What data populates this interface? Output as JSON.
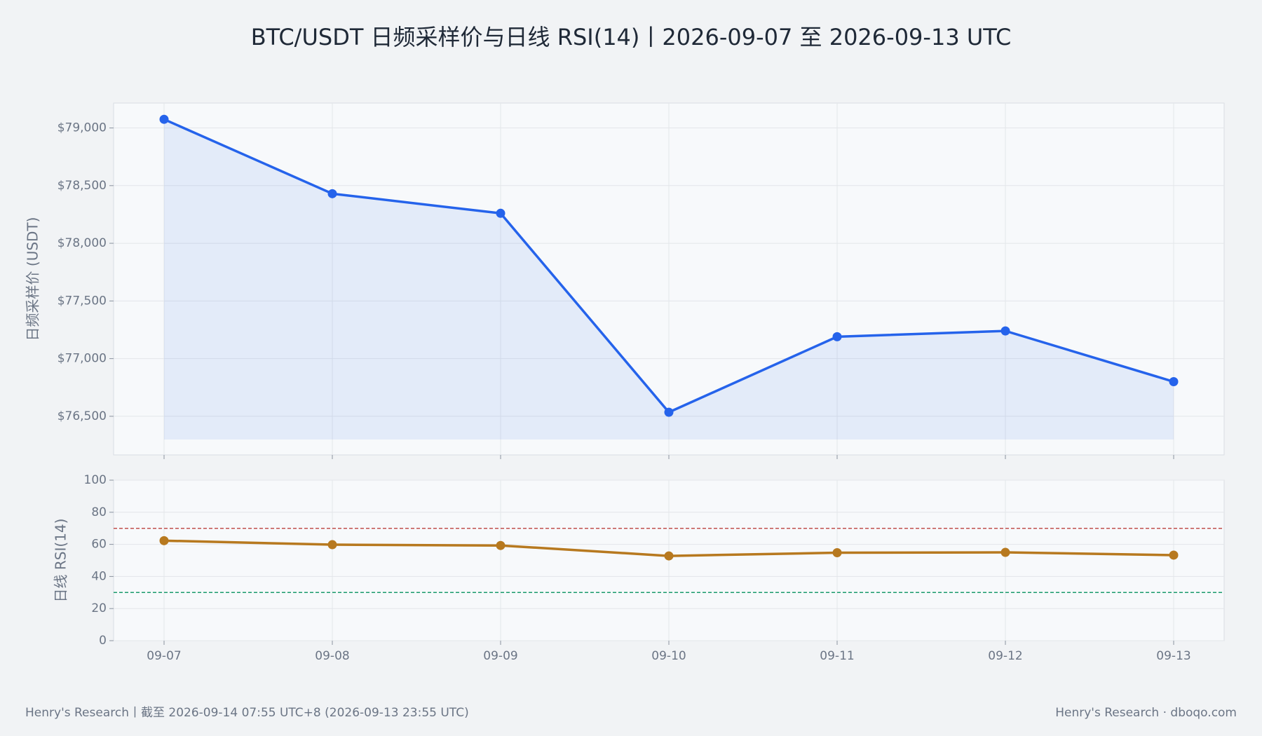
{
  "title": "BTC/USDT 日频采样价与日线 RSI(14)丨2026-09-07 至 2026-09-13 UTC",
  "footer_left": "Henry's Research丨截至 2026-09-14 07:55 UTC+8 (2026-09-13 23:55 UTC)",
  "footer_right": "Henry's Research · dboqo.com",
  "chart_data": [
    {
      "type": "area-line",
      "y_label": "日频采样价 (USDT)",
      "series": [
        {
          "color": "#2563eb",
          "values": [
            79075,
            78430,
            78260,
            76535,
            77190,
            77240,
            76800
          ]
        }
      ],
      "ylim": [
        76165,
        79216
      ],
      "yticks": [
        {
          "value": 76500,
          "label": "$76,500"
        },
        {
          "value": 77000,
          "label": "$77,000"
        },
        {
          "value": 77500,
          "label": "$77,500"
        },
        {
          "value": 78000,
          "label": "$78,000"
        },
        {
          "value": 78500,
          "label": "$78,500"
        },
        {
          "value": 79000,
          "label": "$79,000"
        }
      ],
      "grid": true
    },
    {
      "type": "line",
      "y_label": "日线 RSI(14)",
      "categories": [
        "09-07",
        "09-08",
        "09-09",
        "09-10",
        "09-11",
        "09-12",
        "09-13"
      ],
      "series": [
        {
          "color": "#b7791f",
          "values": [
            62.3,
            59.8,
            59.3,
            52.8,
            54.8,
            55.0,
            53.3
          ]
        }
      ],
      "reference_lines": [
        {
          "value": 70,
          "color": "#c0504d"
        },
        {
          "value": 30,
          "color": "#1a9a6c"
        }
      ],
      "ylim": [
        0,
        100
      ],
      "yticks": [
        0,
        20,
        40,
        60,
        80,
        100
      ],
      "grid": true
    }
  ]
}
